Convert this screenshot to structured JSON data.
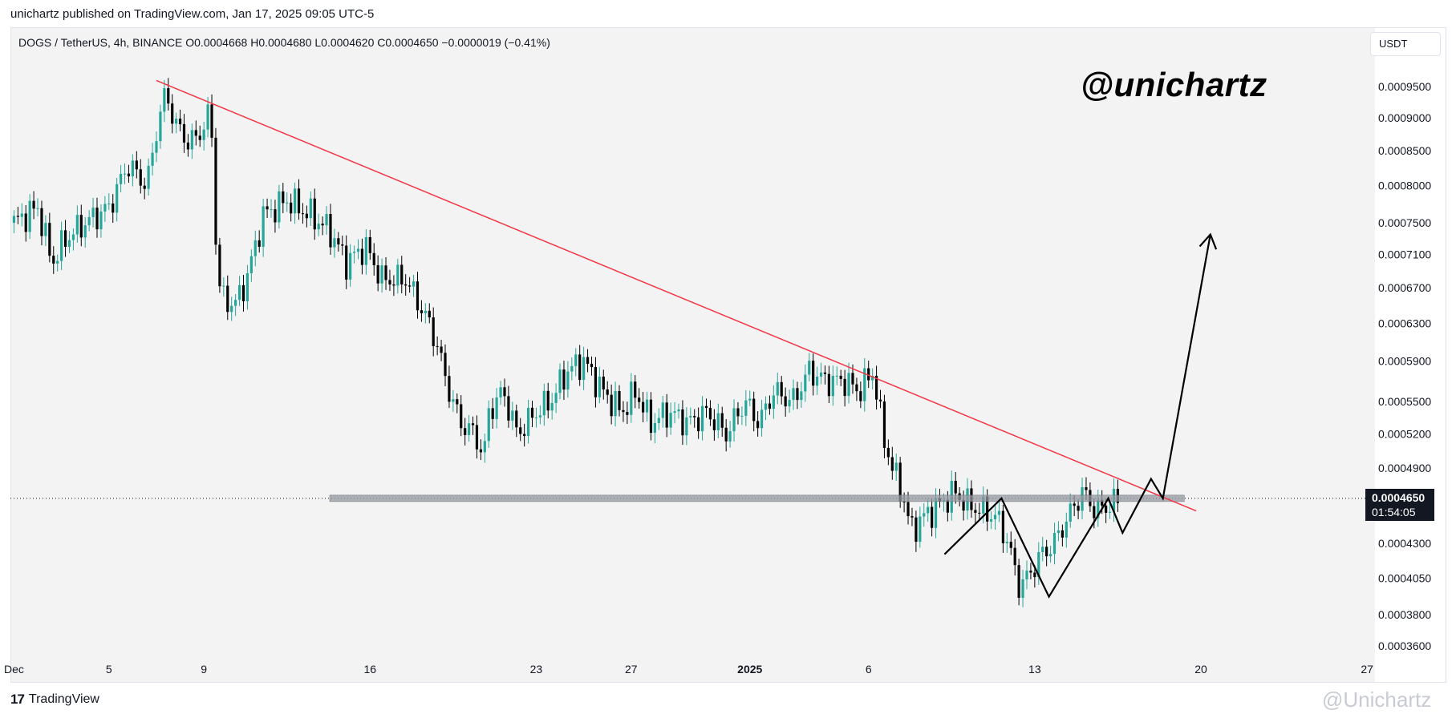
{
  "header": {
    "publisher_line": "unichartz published on TradingView.com, Jan 17, 2025 09:05 UTC-5"
  },
  "symbol": {
    "info_line": "DOGS / TetherUS, 4h, BINANCE  O0.0004668  H0.0004680  L0.0004620  C0.0004650  −0.0000019 (−0.41%)"
  },
  "currency": "USDT",
  "watermark": "@unichartz",
  "price_tag": {
    "price": "0.0004650",
    "countdown": "01:54:05"
  },
  "footer": {
    "brand": "TradingView",
    "brand_mark": "17",
    "corner_watermark": "@Unichartz"
  },
  "colors": {
    "up": "#26a69a",
    "down": "#000000",
    "trendline": "#f23645",
    "pattern": "#000000",
    "support": "#9598a1"
  },
  "chart_data": {
    "type": "candlestick",
    "title": "DOGS / TetherUS, 4h, BINANCE",
    "ylabel": "USDT",
    "y_scale": "log",
    "y_ticks": [
      "0.0009500",
      "0.0009000",
      "0.0008500",
      "0.0008000",
      "0.0007500",
      "0.0007100",
      "0.0006700",
      "0.0006300",
      "0.0005900",
      "0.0005500",
      "0.0005200",
      "0.0004900",
      "0.0004300",
      "0.0004050",
      "0.0003800",
      "0.0003600"
    ],
    "x_ticks": [
      "Dec",
      "5",
      "9",
      "16",
      "23",
      "27",
      "2025",
      "6",
      "13",
      "20",
      "27"
    ],
    "x_tick_days": [
      1,
      5,
      9,
      16,
      23,
      27,
      32,
      37,
      44,
      51,
      58
    ],
    "x_range_days": [
      0.85,
      58.3
    ],
    "last_price": 0.000465,
    "price_series": [
      {
        "d": 1.0,
        "p": 0.00075
      },
      {
        "d": 2.0,
        "p": 0.00077
      },
      {
        "d": 2.6,
        "p": 0.0007
      },
      {
        "d": 3.2,
        "p": 0.00073
      },
      {
        "d": 4.0,
        "p": 0.00075
      },
      {
        "d": 5.0,
        "p": 0.00077
      },
      {
        "d": 5.8,
        "p": 0.00083
      },
      {
        "d": 6.6,
        "p": 0.0008
      },
      {
        "d": 7.1,
        "p": 0.0009
      },
      {
        "d": 7.4,
        "p": 0.00094
      },
      {
        "d": 7.8,
        "p": 0.00089
      },
      {
        "d": 8.4,
        "p": 0.00086
      },
      {
        "d": 8.9,
        "p": 0.00088
      },
      {
        "d": 9.3,
        "p": 0.00091
      },
      {
        "d": 9.5,
        "p": 0.00073
      },
      {
        "d": 9.7,
        "p": 0.00066
      },
      {
        "d": 10.3,
        "p": 0.00065
      },
      {
        "d": 10.8,
        "p": 0.00068
      },
      {
        "d": 11.5,
        "p": 0.00076
      },
      {
        "d": 12.5,
        "p": 0.00078
      },
      {
        "d": 13.5,
        "p": 0.00076
      },
      {
        "d": 14.3,
        "p": 0.00074
      },
      {
        "d": 15.0,
        "p": 0.0007
      },
      {
        "d": 15.8,
        "p": 0.00072
      },
      {
        "d": 16.5,
        "p": 0.00068
      },
      {
        "d": 17.5,
        "p": 0.00068
      },
      {
        "d": 18.3,
        "p": 0.00064
      },
      {
        "d": 18.8,
        "p": 0.00061
      },
      {
        "d": 19.2,
        "p": 0.00057
      },
      {
        "d": 19.8,
        "p": 0.00053
      },
      {
        "d": 20.4,
        "p": 0.00052
      },
      {
        "d": 20.8,
        "p": 0.0005
      },
      {
        "d": 21.0,
        "p": 0.00054
      },
      {
        "d": 21.6,
        "p": 0.00056
      },
      {
        "d": 22.2,
        "p": 0.00052
      },
      {
        "d": 23.0,
        "p": 0.00054
      },
      {
        "d": 23.6,
        "p": 0.00055
      },
      {
        "d": 24.3,
        "p": 0.00058
      },
      {
        "d": 25.0,
        "p": 0.00059
      },
      {
        "d": 25.8,
        "p": 0.00056
      },
      {
        "d": 26.6,
        "p": 0.00054
      },
      {
        "d": 27.2,
        "p": 0.00056
      },
      {
        "d": 27.8,
        "p": 0.00053
      },
      {
        "d": 28.6,
        "p": 0.00054
      },
      {
        "d": 29.4,
        "p": 0.00053
      },
      {
        "d": 30.2,
        "p": 0.00054
      },
      {
        "d": 31.0,
        "p": 0.00052
      },
      {
        "d": 31.8,
        "p": 0.00055
      },
      {
        "d": 32.4,
        "p": 0.00053
      },
      {
        "d": 33.0,
        "p": 0.00056
      },
      {
        "d": 33.8,
        "p": 0.00055
      },
      {
        "d": 34.5,
        "p": 0.00058
      },
      {
        "d": 35.2,
        "p": 0.00057
      },
      {
        "d": 36.0,
        "p": 0.00057
      },
      {
        "d": 36.6,
        "p": 0.00056
      },
      {
        "d": 37.2,
        "p": 0.00058
      },
      {
        "d": 37.6,
        "p": 0.00052
      },
      {
        "d": 38.0,
        "p": 0.00049
      },
      {
        "d": 38.4,
        "p": 0.00047
      },
      {
        "d": 38.8,
        "p": 0.00044
      },
      {
        "d": 39.3,
        "p": 0.00045
      },
      {
        "d": 40.0,
        "p": 0.00046
      },
      {
        "d": 40.6,
        "p": 0.00047
      },
      {
        "d": 41.2,
        "p": 0.00046
      },
      {
        "d": 41.8,
        "p": 0.000455
      },
      {
        "d": 42.4,
        "p": 0.00045
      },
      {
        "d": 42.9,
        "p": 0.00043
      },
      {
        "d": 43.3,
        "p": 0.0004
      },
      {
        "d": 43.7,
        "p": 0.000405
      },
      {
        "d": 44.2,
        "p": 0.00042
      },
      {
        "d": 44.8,
        "p": 0.00043
      },
      {
        "d": 45.4,
        "p": 0.00045
      },
      {
        "d": 46.0,
        "p": 0.00047
      },
      {
        "d": 46.6,
        "p": 0.000455
      },
      {
        "d": 47.2,
        "p": 0.00046
      },
      {
        "d": 47.6,
        "p": 0.000465
      }
    ],
    "support_level": 0.000465,
    "trendline": {
      "from": {
        "d": 7.0,
        "p": 0.00096
      },
      "to": {
        "d": 50.8,
        "p": 0.000455
      }
    },
    "pattern_path": [
      {
        "d": 40.2,
        "p": 0.000422
      },
      {
        "d": 42.6,
        "p": 0.000465
      },
      {
        "d": 44.6,
        "p": 0.000392
      },
      {
        "d": 47.1,
        "p": 0.000465
      },
      {
        "d": 47.7,
        "p": 0.000438
      },
      {
        "d": 48.9,
        "p": 0.000481
      },
      {
        "d": 49.4,
        "p": 0.000465
      },
      {
        "d": 51.4,
        "p": 0.000735
      }
    ],
    "annotations": [
      "@unichartz"
    ]
  }
}
